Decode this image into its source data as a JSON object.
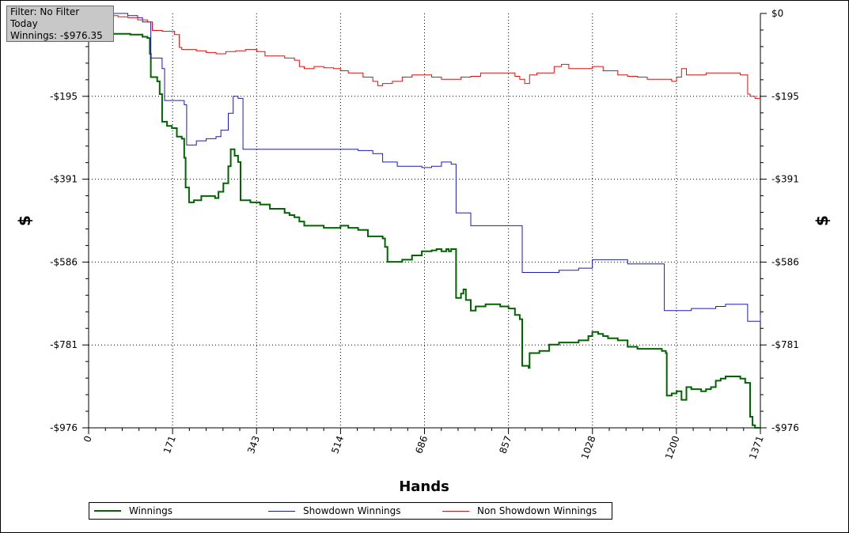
{
  "filter_info": {
    "line1": "Filter: No Filter",
    "line2": "Today",
    "line3": "Winnings: -$976.35"
  },
  "chart_data": {
    "type": "line",
    "title": "",
    "xlabel": "Hands",
    "ylabel": "$",
    "xlim": [
      0,
      1371
    ],
    "ylim": [
      -976,
      0
    ],
    "x_ticks": [
      "0",
      "171",
      "343",
      "514",
      "686",
      "857",
      "1028",
      "1200",
      "1371"
    ],
    "y_ticks": [
      "$0",
      "-$195",
      "-$391",
      "-$586",
      "-$781",
      "-$976"
    ],
    "grid": true,
    "legend_position": "bottom",
    "series": [
      {
        "name": "Winnings",
        "color": "#006400",
        "points": [
          [
            0,
            0
          ],
          [
            10,
            -15
          ],
          [
            20,
            -40
          ],
          [
            30,
            -45
          ],
          [
            50,
            -48
          ],
          [
            70,
            -48
          ],
          [
            85,
            -50
          ],
          [
            110,
            -55
          ],
          [
            120,
            -58
          ],
          [
            125,
            -95
          ],
          [
            127,
            -150
          ],
          [
            140,
            -160
          ],
          [
            145,
            -190
          ],
          [
            150,
            -255
          ],
          [
            160,
            -265
          ],
          [
            170,
            -270
          ],
          [
            180,
            -290
          ],
          [
            190,
            -295
          ],
          [
            195,
            -340
          ],
          [
            198,
            -410
          ],
          [
            205,
            -445
          ],
          [
            215,
            -440
          ],
          [
            230,
            -430
          ],
          [
            250,
            -430
          ],
          [
            258,
            -435
          ],
          [
            265,
            -420
          ],
          [
            275,
            -400
          ],
          [
            285,
            -360
          ],
          [
            290,
            -320
          ],
          [
            298,
            -335
          ],
          [
            305,
            -350
          ],
          [
            310,
            -440
          ],
          [
            330,
            -445
          ],
          [
            350,
            -450
          ],
          [
            370,
            -460
          ],
          [
            400,
            -470
          ],
          [
            410,
            -475
          ],
          [
            420,
            -480
          ],
          [
            430,
            -490
          ],
          [
            440,
            -500
          ],
          [
            460,
            -500
          ],
          [
            480,
            -505
          ],
          [
            500,
            -505
          ],
          [
            514,
            -500
          ],
          [
            530,
            -505
          ],
          [
            550,
            -510
          ],
          [
            570,
            -525
          ],
          [
            600,
            -530
          ],
          [
            605,
            -550
          ],
          [
            610,
            -585
          ],
          [
            620,
            -585
          ],
          [
            640,
            -580
          ],
          [
            660,
            -570
          ],
          [
            680,
            -560
          ],
          [
            700,
            -558
          ],
          [
            710,
            -555
          ],
          [
            720,
            -560
          ],
          [
            730,
            -555
          ],
          [
            735,
            -560
          ],
          [
            740,
            -555
          ],
          [
            750,
            -670
          ],
          [
            760,
            -660
          ],
          [
            765,
            -650
          ],
          [
            770,
            -675
          ],
          [
            780,
            -700
          ],
          [
            790,
            -690
          ],
          [
            810,
            -685
          ],
          [
            840,
            -690
          ],
          [
            857,
            -695
          ],
          [
            870,
            -710
          ],
          [
            880,
            -720
          ],
          [
            885,
            -830
          ],
          [
            898,
            -835
          ],
          [
            900,
            -800
          ],
          [
            920,
            -795
          ],
          [
            940,
            -780
          ],
          [
            960,
            -775
          ],
          [
            980,
            -775
          ],
          [
            1000,
            -770
          ],
          [
            1020,
            -760
          ],
          [
            1028,
            -750
          ],
          [
            1040,
            -755
          ],
          [
            1050,
            -760
          ],
          [
            1060,
            -765
          ],
          [
            1080,
            -770
          ],
          [
            1100,
            -785
          ],
          [
            1120,
            -790
          ],
          [
            1150,
            -790
          ],
          [
            1170,
            -795
          ],
          [
            1178,
            -800
          ],
          [
            1180,
            -900
          ],
          [
            1190,
            -895
          ],
          [
            1200,
            -890
          ],
          [
            1210,
            -910
          ],
          [
            1220,
            -880
          ],
          [
            1230,
            -885
          ],
          [
            1250,
            -890
          ],
          [
            1260,
            -885
          ],
          [
            1270,
            -880
          ],
          [
            1280,
            -865
          ],
          [
            1290,
            -860
          ],
          [
            1300,
            -855
          ],
          [
            1320,
            -855
          ],
          [
            1330,
            -860
          ],
          [
            1340,
            -870
          ],
          [
            1350,
            -950
          ],
          [
            1355,
            -970
          ],
          [
            1360,
            -976
          ],
          [
            1371,
            -976
          ]
        ]
      },
      {
        "name": "Showdown Winnings",
        "color": "#1c1cb4",
        "points": [
          [
            0,
            0
          ],
          [
            20,
            0
          ],
          [
            40,
            0
          ],
          [
            60,
            0
          ],
          [
            80,
            -5
          ],
          [
            100,
            -10
          ],
          [
            110,
            -20
          ],
          [
            125,
            -20
          ],
          [
            127,
            -105
          ],
          [
            140,
            -105
          ],
          [
            150,
            -130
          ],
          [
            155,
            -205
          ],
          [
            170,
            -205
          ],
          [
            185,
            -205
          ],
          [
            195,
            -215
          ],
          [
            200,
            -310
          ],
          [
            215,
            -310
          ],
          [
            220,
            -300
          ],
          [
            240,
            -295
          ],
          [
            260,
            -290
          ],
          [
            270,
            -275
          ],
          [
            285,
            -235
          ],
          [
            295,
            -195
          ],
          [
            305,
            -200
          ],
          [
            315,
            -320
          ],
          [
            350,
            -320
          ],
          [
            400,
            -320
          ],
          [
            500,
            -320
          ],
          [
            550,
            -323
          ],
          [
            580,
            -330
          ],
          [
            600,
            -350
          ],
          [
            630,
            -360
          ],
          [
            680,
            -363
          ],
          [
            700,
            -360
          ],
          [
            720,
            -350
          ],
          [
            740,
            -355
          ],
          [
            750,
            -470
          ],
          [
            760,
            -470
          ],
          [
            780,
            -500
          ],
          [
            800,
            -500
          ],
          [
            857,
            -500
          ],
          [
            870,
            -500
          ],
          [
            885,
            -610
          ],
          [
            920,
            -610
          ],
          [
            960,
            -605
          ],
          [
            1000,
            -600
          ],
          [
            1028,
            -580
          ],
          [
            1080,
            -580
          ],
          [
            1100,
            -590
          ],
          [
            1150,
            -590
          ],
          [
            1170,
            -590
          ],
          [
            1175,
            -700
          ],
          [
            1200,
            -700
          ],
          [
            1230,
            -695
          ],
          [
            1260,
            -695
          ],
          [
            1280,
            -690
          ],
          [
            1300,
            -685
          ],
          [
            1320,
            -685
          ],
          [
            1335,
            -685
          ],
          [
            1345,
            -725
          ],
          [
            1371,
            -710
          ]
        ]
      },
      {
        "name": "Non Showdown Winnings",
        "color": "#dd1111",
        "points": [
          [
            0,
            0
          ],
          [
            20,
            -2
          ],
          [
            40,
            -5
          ],
          [
            60,
            -8
          ],
          [
            80,
            -10
          ],
          [
            100,
            -15
          ],
          [
            120,
            -20
          ],
          [
            130,
            -40
          ],
          [
            150,
            -42
          ],
          [
            175,
            -50
          ],
          [
            185,
            -80
          ],
          [
            190,
            -85
          ],
          [
            200,
            -85
          ],
          [
            220,
            -88
          ],
          [
            240,
            -92
          ],
          [
            260,
            -95
          ],
          [
            280,
            -90
          ],
          [
            300,
            -88
          ],
          [
            320,
            -85
          ],
          [
            343,
            -90
          ],
          [
            360,
            -100
          ],
          [
            380,
            -100
          ],
          [
            400,
            -105
          ],
          [
            420,
            -110
          ],
          [
            430,
            -125
          ],
          [
            440,
            -130
          ],
          [
            460,
            -125
          ],
          [
            480,
            -128
          ],
          [
            500,
            -130
          ],
          [
            514,
            -135
          ],
          [
            530,
            -140
          ],
          [
            545,
            -140
          ],
          [
            560,
            -150
          ],
          [
            580,
            -160
          ],
          [
            590,
            -170
          ],
          [
            600,
            -165
          ],
          [
            620,
            -160
          ],
          [
            640,
            -150
          ],
          [
            660,
            -145
          ],
          [
            686,
            -145
          ],
          [
            700,
            -150
          ],
          [
            720,
            -155
          ],
          [
            740,
            -155
          ],
          [
            760,
            -150
          ],
          [
            780,
            -148
          ],
          [
            800,
            -140
          ],
          [
            820,
            -140
          ],
          [
            840,
            -140
          ],
          [
            857,
            -140
          ],
          [
            870,
            -148
          ],
          [
            880,
            -155
          ],
          [
            890,
            -165
          ],
          [
            900,
            -145
          ],
          [
            915,
            -140
          ],
          [
            930,
            -140
          ],
          [
            950,
            -125
          ],
          [
            965,
            -120
          ],
          [
            980,
            -130
          ],
          [
            1000,
            -130
          ],
          [
            1028,
            -125
          ],
          [
            1050,
            -135
          ],
          [
            1080,
            -145
          ],
          [
            1100,
            -148
          ],
          [
            1120,
            -150
          ],
          [
            1140,
            -155
          ],
          [
            1160,
            -155
          ],
          [
            1180,
            -155
          ],
          [
            1190,
            -160
          ],
          [
            1200,
            -150
          ],
          [
            1210,
            -130
          ],
          [
            1220,
            -145
          ],
          [
            1240,
            -145
          ],
          [
            1260,
            -140
          ],
          [
            1280,
            -140
          ],
          [
            1300,
            -140
          ],
          [
            1320,
            -140
          ],
          [
            1330,
            -145
          ],
          [
            1340,
            -145
          ],
          [
            1345,
            -190
          ],
          [
            1350,
            -195
          ],
          [
            1360,
            -200
          ],
          [
            1371,
            -200
          ]
        ]
      }
    ]
  }
}
